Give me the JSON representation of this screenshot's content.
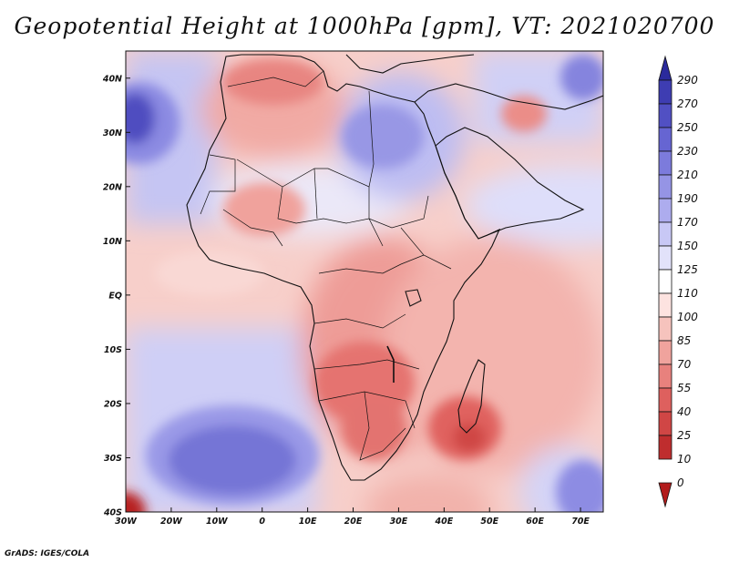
{
  "title": "Geopotential Height at 1000hPa [gpm], VT: 2021020700",
  "credit": "GrADS: IGES/COLA",
  "map": {
    "variable": "Geopotential Height",
    "level": "1000hPa",
    "units": "gpm",
    "valid_time": "2021020700",
    "lon_range": [
      -30,
      75
    ],
    "lat_range": [
      -40,
      45
    ],
    "lon_ticks": [
      {
        "value": -30,
        "label": "30W"
      },
      {
        "value": -20,
        "label": "20W"
      },
      {
        "value": -10,
        "label": "10W"
      },
      {
        "value": 0,
        "label": "0"
      },
      {
        "value": 10,
        "label": "10E"
      },
      {
        "value": 20,
        "label": "20E"
      },
      {
        "value": 30,
        "label": "30E"
      },
      {
        "value": 40,
        "label": "40E"
      },
      {
        "value": 50,
        "label": "50E"
      },
      {
        "value": 60,
        "label": "60E"
      },
      {
        "value": 70,
        "label": "70E"
      }
    ],
    "lat_ticks": [
      {
        "value": 40,
        "label": "40N"
      },
      {
        "value": 30,
        "label": "30N"
      },
      {
        "value": 20,
        "label": "20N"
      },
      {
        "value": 10,
        "label": "10N"
      },
      {
        "value": 0,
        "label": "EQ"
      },
      {
        "value": -10,
        "label": "10S"
      },
      {
        "value": -20,
        "label": "20S"
      },
      {
        "value": -30,
        "label": "30S"
      },
      {
        "value": -40,
        "label": "40S"
      }
    ],
    "features": {
      "highs": [
        {
          "name": "azores-high",
          "lon": -28,
          "lat": 31,
          "value": 265
        },
        {
          "name": "st-helena-high",
          "lon": -7,
          "lat": -29,
          "value": 210
        },
        {
          "name": "mascarene-high",
          "lon": 74,
          "lat": -36,
          "value": 190
        },
        {
          "name": "egypt-high",
          "lon": 27,
          "lat": 27,
          "value": 175
        },
        {
          "name": "iran-high",
          "lon": 72,
          "lat": 42,
          "value": 245
        }
      ],
      "lows": [
        {
          "name": "madagascar-low",
          "lon": 44,
          "lat": -27,
          "value": 45
        },
        {
          "name": "southern-africa-low",
          "lon": 23,
          "lat": -18,
          "value": 55
        },
        {
          "name": "southwest-corner-low",
          "lon": -30,
          "lat": -40,
          "value": 5
        }
      ]
    }
  },
  "colorbar": {
    "levels": [
      "290",
      "270",
      "250",
      "230",
      "210",
      "190",
      "170",
      "150",
      "125",
      "110",
      "100",
      "85",
      "70",
      "55",
      "40",
      "25",
      "10",
      "0"
    ],
    "colors": [
      "#2b2a9c",
      "#3e3db2",
      "#5150c3",
      "#6665d2",
      "#7c7bdc",
      "#9594e5",
      "#adacee",
      "#c8c8f5",
      "#e2e2fa",
      "#ffffff",
      "#fde3e0",
      "#f6c3bd",
      "#f0a39d",
      "#e8817d",
      "#de605e",
      "#d04645",
      "#bf2d2e",
      "#b21c1c"
    ]
  }
}
